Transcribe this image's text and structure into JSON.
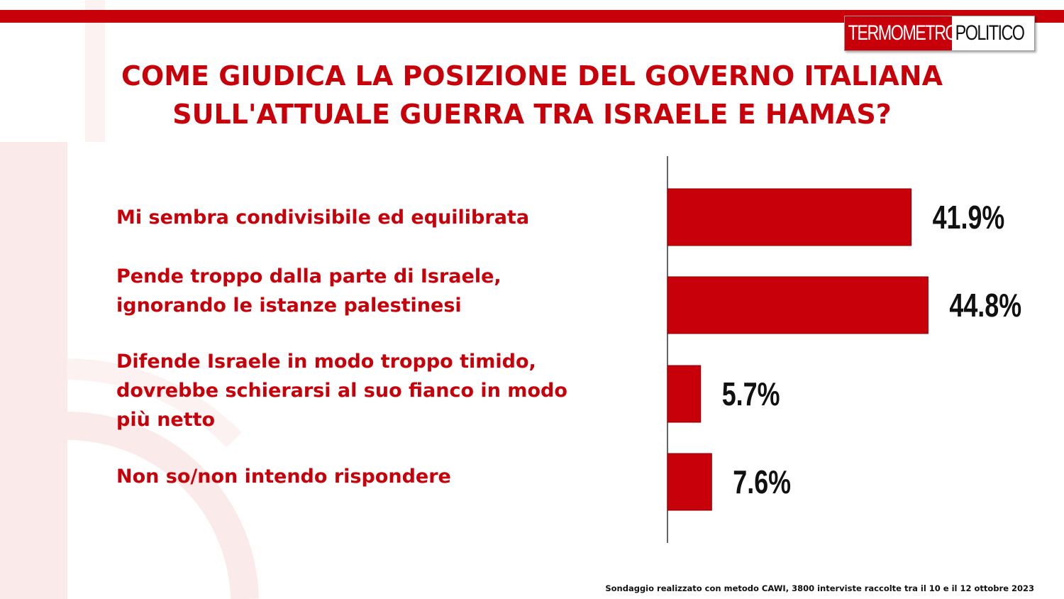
{
  "brand": {
    "logo_part1": "TERMOMETRO",
    "logo_part2": "POLITICO",
    "accent": "#c8000a"
  },
  "header": {
    "title_line1": "COME GIUDICA LA POSIZIONE DEL GOVERNO ITALIANA",
    "title_line2": "SULL'ATTUALE GUERRA TRA ISRAELE E HAMAS?"
  },
  "chart_data": {
    "type": "bar",
    "orientation": "horizontal",
    "categories": [
      "Mi sembra condivisibile ed equilibrata",
      "Pende troppo dalla parte di Israele, ignorando le istanze palestinesi",
      "Difende Israele in modo troppo timido, dovrebbe schierarsi al suo fianco in modo più netto",
      "Non so/non intendo rispondere"
    ],
    "category_lines": [
      [
        "Mi sembra condivisibile ed equilibrata"
      ],
      [
        "Pende troppo dalla parte di Israele,",
        "ignorando le istanze palestinesi"
      ],
      [
        "Difende Israele in modo troppo timido,",
        "dovrebbe schierarsi al suo fianco in modo",
        "più netto"
      ],
      [
        "Non so/non intendo rispondere"
      ]
    ],
    "values": [
      41.9,
      44.8,
      5.7,
      7.6
    ],
    "value_labels": [
      "41.9%",
      "44.8%",
      "5.7%",
      "7.6%"
    ],
    "unit": "%",
    "xlim": [
      0,
      50
    ],
    "bar_color": "#c8000a",
    "grid": false,
    "legend": "none"
  },
  "footer": {
    "note": "Sondaggio realizzato con metodo CAWI, 3800 interviste raccolte tra il 10 e il 12 ottobre 2023"
  }
}
